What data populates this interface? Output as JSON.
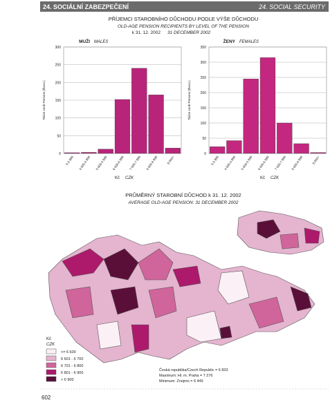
{
  "header": {
    "left": "24. SOCIÁLNÍ ZABEZPEČENÍ",
    "right": "24. SOCIAL SECURITY"
  },
  "section_title": {
    "line1": "PŘÍJEMCI STAROBNÍHO DŮCHODU PODLE VÝŠE DŮCHODU",
    "line2": "OLD-AGE PENSION RECIPIENTS BY LEVEL OF THE PENSION",
    "line3": "k 31. 12. 2002",
    "line4": "31 DECEMBER 2002"
  },
  "chart_data": [
    {
      "type": "bar",
      "title": "MUŽI",
      "subtitle": "MALES",
      "y_label": "Tisíce osob   Persons (thous.)",
      "x_label": "Kč",
      "x_label_en": "CZK",
      "categories": [
        "0-3 999",
        "4 000-4 999",
        "5 000-5 999",
        "6 000-6 999",
        "7 000-7 999",
        "8 000-8 999",
        "9 000+"
      ],
      "values": [
        2,
        3,
        12,
        152,
        240,
        165,
        15
      ],
      "color": "#b8247a",
      "ylim": [
        0,
        300
      ],
      "yticks": [
        0,
        50,
        100,
        150,
        200,
        250,
        300
      ]
    },
    {
      "type": "bar",
      "title": "ŽENY",
      "subtitle": "FEMALES",
      "y_label": "Tisíce osob   Persons (thous.)",
      "x_label": "Kč",
      "x_label_en": "CZK",
      "categories": [
        "0-3 999",
        "4 000-4 999",
        "5 000-5 999",
        "6 000-6 999",
        "7 000-7 999",
        "8 000-8 999",
        "9 000+"
      ],
      "values": [
        22,
        42,
        245,
        315,
        100,
        32,
        3
      ],
      "color": "#c4277f",
      "ylim": [
        0,
        350
      ],
      "yticks": [
        0,
        50,
        100,
        150,
        200,
        250,
        300,
        350
      ]
    }
  ],
  "map": {
    "title": "PRŮMĚRNÝ STAROBNÍ DŮCHOD k 31. 12. 2002",
    "subtitle": "AVERAGE OLD-AGE PENSION: 31 DECEMBER 2002",
    "legend_title": "Kč",
    "legend_title_en": "CZK",
    "items": [
      {
        "label": "<= 6 600",
        "color": "#fbf0f5"
      },
      {
        "label": "6 601 - 6 700",
        "color": "#e5b4cf"
      },
      {
        "label": "6 701 - 6 800",
        "color": "#d0659b"
      },
      {
        "label": "6 801 - 6 900",
        "color": "#ad1a6b"
      },
      {
        "label": "> 6 900",
        "color": "#5a0f39"
      }
    ],
    "notes": [
      "Česká republika/Czech Republic = 6 833",
      "Maximum: Hl. m. Praha = 7 276",
      "Minimum: Znojmo = 6 449"
    ]
  },
  "page_number": "602"
}
